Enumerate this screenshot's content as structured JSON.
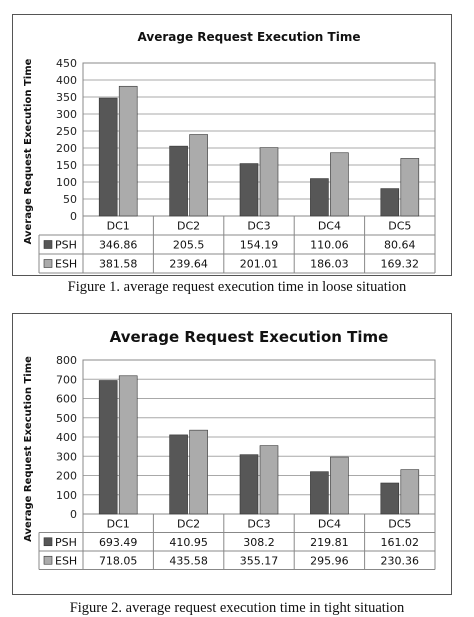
{
  "figures": [
    {
      "caption": "Figure 1. average request execution time in loose situation"
    },
    {
      "caption": "Figure 2. average request execution time in tight situation"
    }
  ],
  "colors": {
    "PSH": "#575757",
    "ESH": "#ababab"
  },
  "chart_data": [
    {
      "type": "bar",
      "title": "Average Request Execution Time",
      "xlabel": "",
      "ylabel": "Average Request Execution Time",
      "categories": [
        "DC1",
        "DC2",
        "DC3",
        "DC4",
        "DC5"
      ],
      "series": [
        {
          "name": "PSH",
          "values": [
            346.86,
            205.5,
            154.19,
            110.06,
            80.64
          ]
        },
        {
          "name": "ESH",
          "values": [
            381.58,
            239.64,
            201.01,
            186.03,
            169.32
          ]
        }
      ],
      "series_display": [
        {
          "name": "PSH",
          "values": [
            "346.86",
            "205.5",
            "154.19",
            "110.06",
            "80.64"
          ]
        },
        {
          "name": "ESH",
          "values": [
            "381.58",
            "239.64",
            "201.01",
            "186.03",
            "169.32"
          ]
        }
      ],
      "ylim": [
        0,
        450
      ],
      "yticks": [
        0,
        50,
        100,
        150,
        200,
        250,
        300,
        350,
        400,
        450
      ],
      "grid": true,
      "legend": "data table"
    },
    {
      "type": "bar",
      "title": "Average Request Execution Time",
      "xlabel": "",
      "ylabel": "Average Request Execution Time",
      "categories": [
        "DC1",
        "DC2",
        "DC3",
        "DC4",
        "DC5"
      ],
      "series": [
        {
          "name": "PSH",
          "values": [
            693.49,
            410.95,
            308.2,
            219.81,
            161.02
          ]
        },
        {
          "name": "ESH",
          "values": [
            718.05,
            435.58,
            355.17,
            295.96,
            230.36
          ]
        }
      ],
      "series_display": [
        {
          "name": "PSH",
          "values": [
            "693.49",
            "410.95",
            "308.2",
            "219.81",
            "161.02"
          ]
        },
        {
          "name": "ESH",
          "values": [
            "718.05",
            "435.58",
            "355.17",
            "295.96",
            "230.36"
          ]
        }
      ],
      "ylim": [
        0,
        800
      ],
      "yticks": [
        0,
        100,
        200,
        300,
        400,
        500,
        600,
        700,
        800
      ],
      "grid": true,
      "legend": "data table"
    }
  ]
}
